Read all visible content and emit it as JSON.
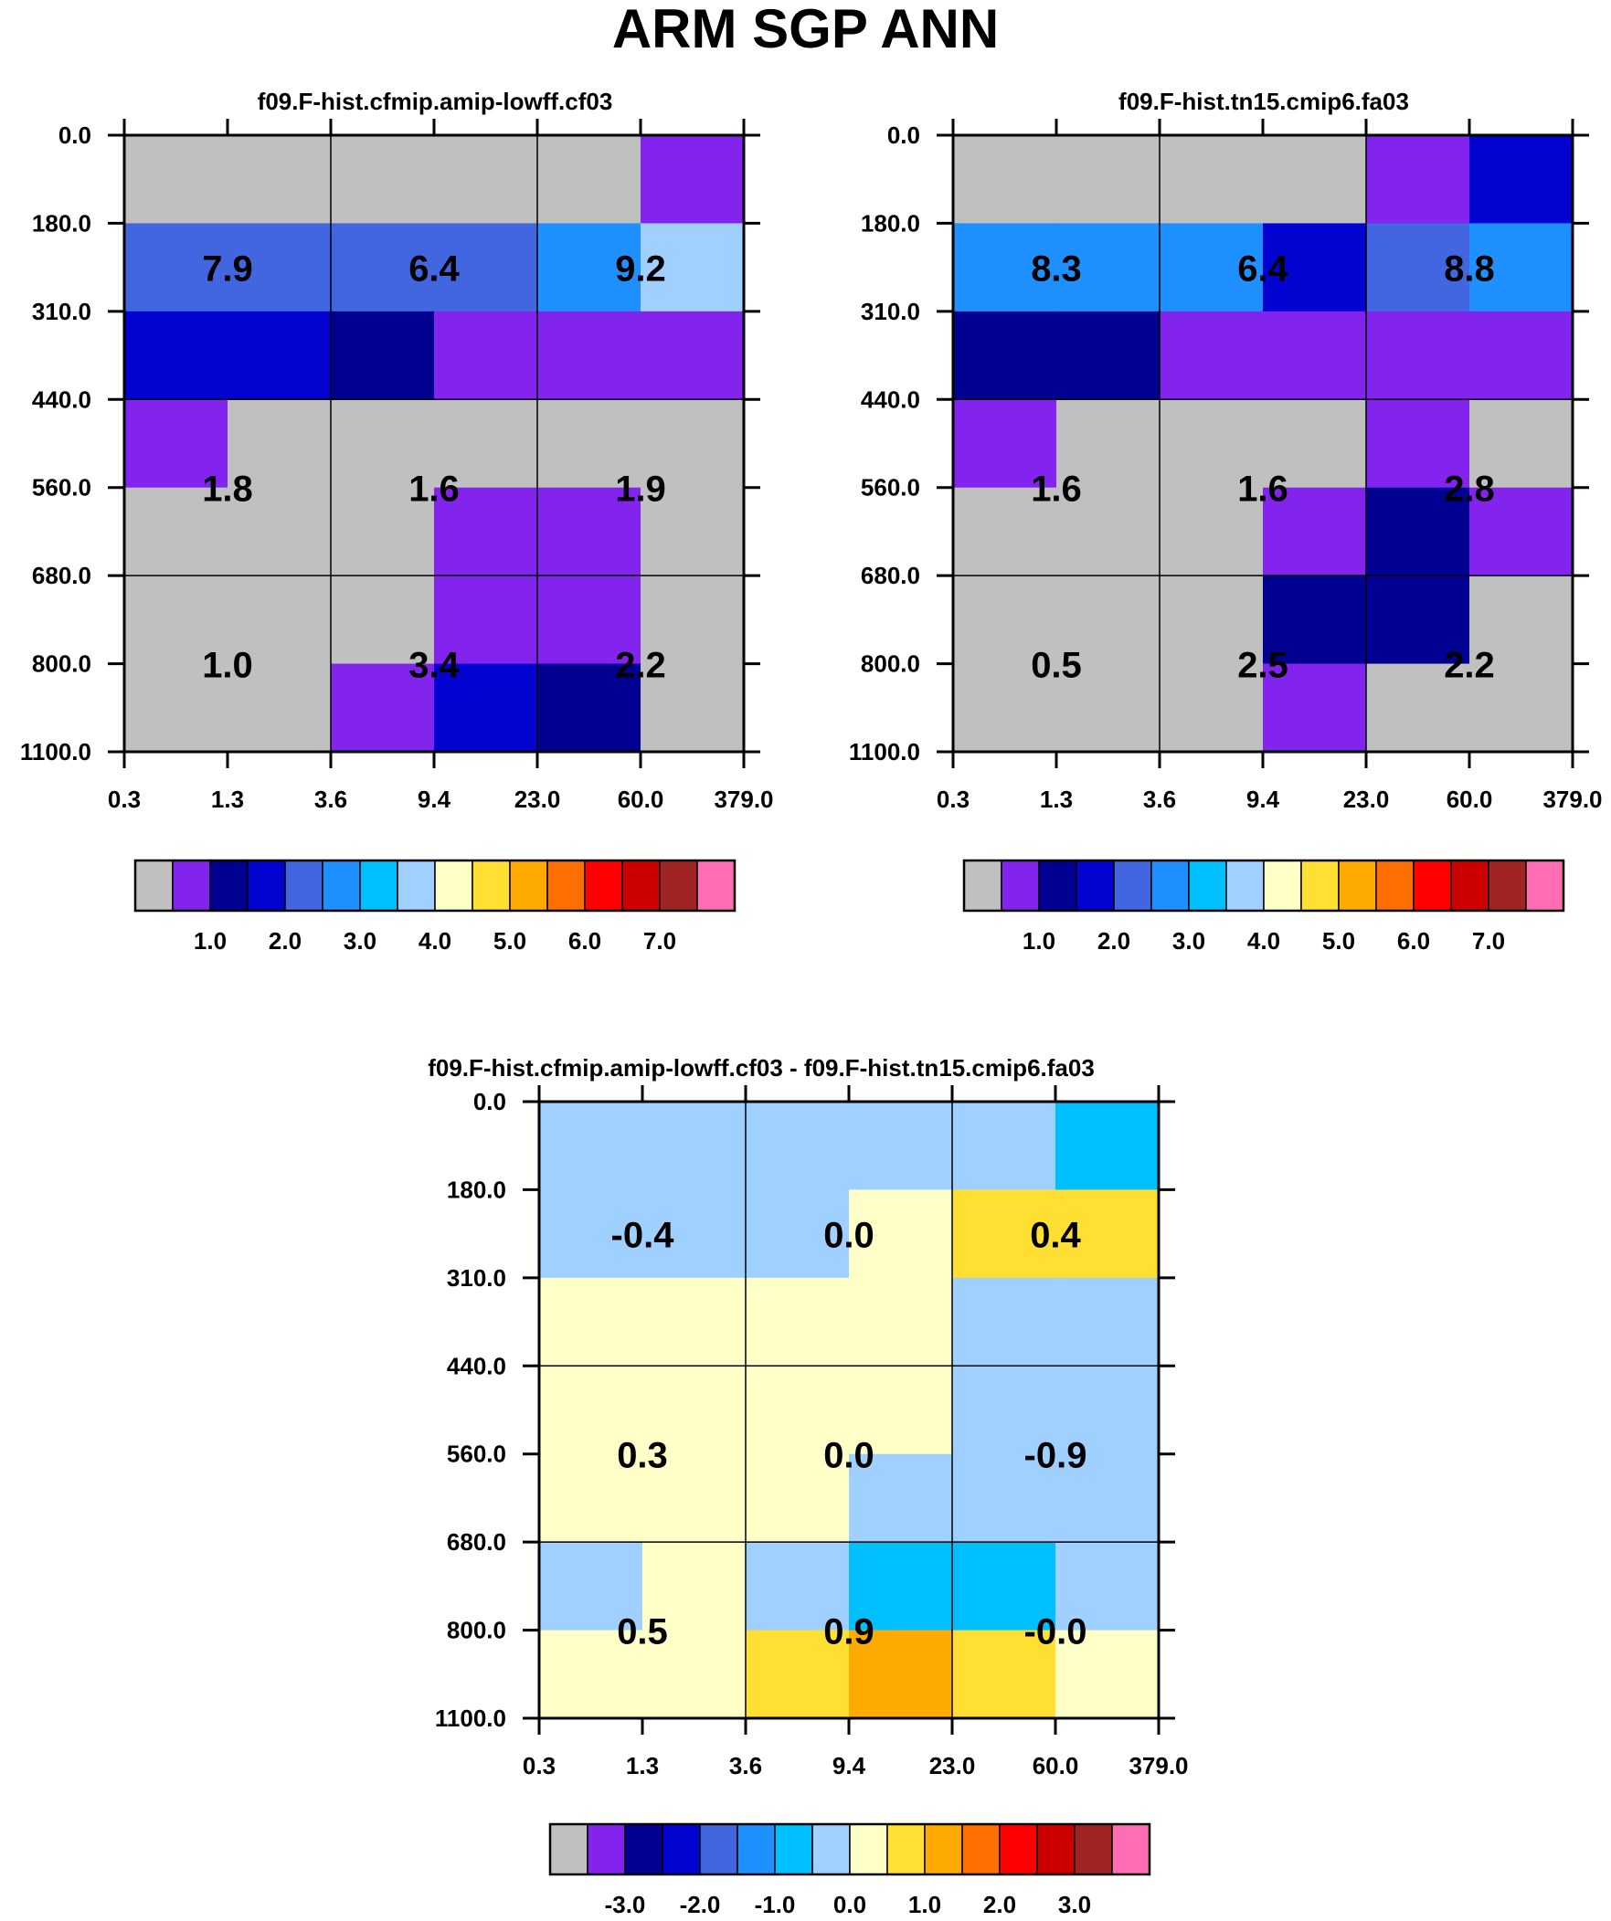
{
  "title": "ARM SGP ANN",
  "x_tick_labels": [
    "0.3",
    "1.3",
    "3.6",
    "9.4",
    "23.0",
    "60.0",
    "379.0"
  ],
  "y_tick_labels": [
    "0.0",
    "180.0",
    "310.0",
    "440.0",
    "560.0",
    "680.0",
    "800.0",
    "1100.0"
  ],
  "palette": [
    "#c0c0c0",
    "#8224ee",
    "#020090",
    "#0203d0",
    "#4266e0",
    "#1e90ff",
    "#00bfff",
    "#a0d0ff",
    "#ffffc8",
    "#ffe032",
    "#ffaa00",
    "#ff6e00",
    "#ff0000",
    "#cc0000",
    "#a02424",
    "#ff6eb4"
  ],
  "chart_data": [
    {
      "type": "heatmap",
      "title": "f09.F-hist.cfmip.amip-lowff.cf03",
      "x_edges": [
        0.3,
        1.3,
        3.6,
        9.4,
        23.0,
        60.0,
        379.0
      ],
      "y_edges": [
        0.0,
        180.0,
        310.0,
        440.0,
        560.0,
        680.0,
        800.0,
        1100.0
      ],
      "cells": [
        [
          0,
          0,
          0,
          0,
          0,
          1
        ],
        [
          4,
          4,
          4,
          4,
          5,
          7
        ],
        [
          3,
          3,
          2,
          1,
          1,
          1
        ],
        [
          1,
          0,
          0,
          0,
          0,
          0
        ],
        [
          0,
          0,
          0,
          1,
          1,
          0
        ],
        [
          0,
          0,
          0,
          1,
          1,
          0
        ],
        [
          0,
          0,
          1,
          3,
          2,
          0
        ]
      ],
      "box_values": [
        [
          "7.9",
          "6.4",
          "9.2"
        ],
        [
          "1.8",
          "1.6",
          "1.9"
        ],
        [
          "1.0",
          "3.4",
          "2.2"
        ]
      ],
      "colorbar_labels": [
        "1.0",
        "2.0",
        "3.0",
        "4.0",
        "5.0",
        "6.0",
        "7.0"
      ]
    },
    {
      "type": "heatmap",
      "title": "f09.F-hist.tn15.cmip6.fa03",
      "x_edges": [
        0.3,
        1.3,
        3.6,
        9.4,
        23.0,
        60.0,
        379.0
      ],
      "y_edges": [
        0.0,
        180.0,
        310.0,
        440.0,
        560.0,
        680.0,
        800.0,
        1100.0
      ],
      "cells": [
        [
          0,
          0,
          0,
          0,
          1,
          3
        ],
        [
          5,
          5,
          5,
          3,
          4,
          5
        ],
        [
          2,
          2,
          1,
          1,
          1,
          1
        ],
        [
          1,
          0,
          0,
          0,
          1,
          0
        ],
        [
          0,
          0,
          0,
          1,
          2,
          1
        ],
        [
          0,
          0,
          0,
          2,
          2,
          0
        ],
        [
          0,
          0,
          0,
          1,
          0,
          0
        ]
      ],
      "box_values": [
        [
          "8.3",
          "6.4",
          "8.8"
        ],
        [
          "1.6",
          "1.6",
          "2.8"
        ],
        [
          "0.5",
          "2.5",
          "2.2"
        ]
      ],
      "colorbar_labels": [
        "1.0",
        "2.0",
        "3.0",
        "4.0",
        "5.0",
        "6.0",
        "7.0"
      ]
    },
    {
      "type": "heatmap",
      "title": "f09.F-hist.cfmip.amip-lowff.cf03 - f09.F-hist.tn15.cmip6.fa03",
      "x_edges": [
        0.3,
        1.3,
        3.6,
        9.4,
        23.0,
        60.0,
        379.0
      ],
      "y_edges": [
        0.0,
        180.0,
        310.0,
        440.0,
        560.0,
        680.0,
        800.0,
        1100.0
      ],
      "cells": [
        [
          7,
          7,
          7,
          7,
          7,
          6
        ],
        [
          7,
          7,
          7,
          8,
          9,
          9
        ],
        [
          8,
          8,
          8,
          8,
          7,
          7
        ],
        [
          8,
          8,
          8,
          8,
          7,
          7
        ],
        [
          8,
          8,
          8,
          7,
          7,
          7
        ],
        [
          7,
          8,
          7,
          6,
          6,
          7
        ],
        [
          8,
          8,
          9,
          10,
          9,
          8
        ]
      ],
      "box_values": [
        [
          "-0.4",
          "0.0",
          "0.4"
        ],
        [
          "0.3",
          "0.0",
          "-0.9"
        ],
        [
          "0.5",
          "0.9",
          "-0.0"
        ]
      ],
      "colorbar_labels": [
        "-3.0",
        "-2.0",
        "-1.0",
        "0.0",
        "1.0",
        "2.0",
        "3.0"
      ]
    }
  ]
}
